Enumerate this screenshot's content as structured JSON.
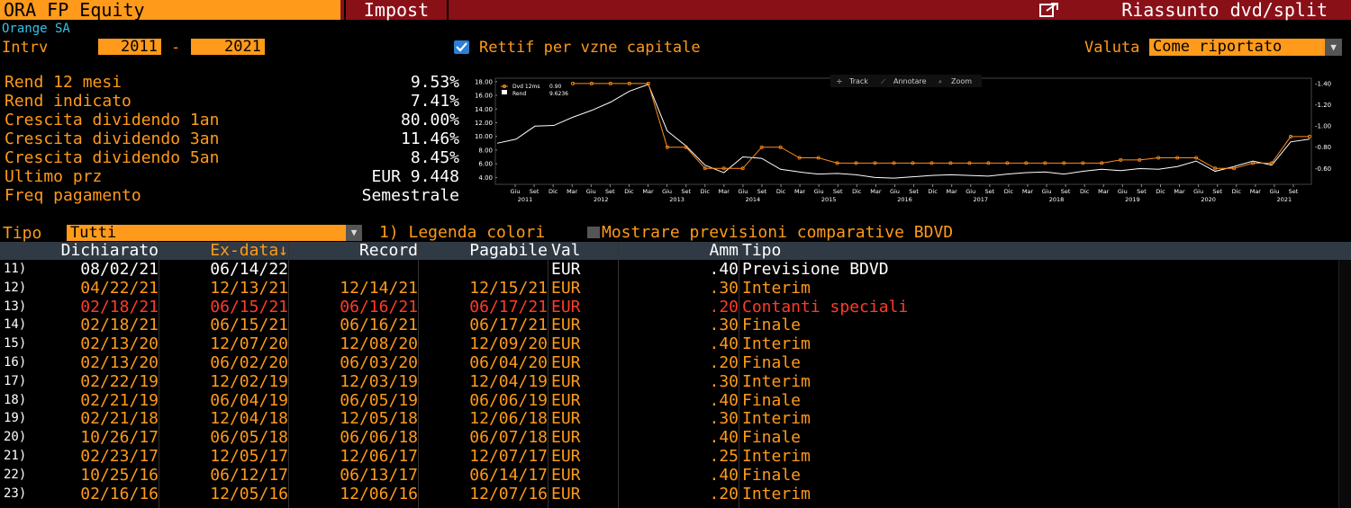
{
  "header": {
    "security": "ORA FP Equity",
    "impost": "Impost",
    "summary": "Riassunto dvd/split",
    "export_icon": "export-icon"
  },
  "company": "Orange SA",
  "interval": {
    "label": "Intrv",
    "from": "2011",
    "sep": "-",
    "to": "2021"
  },
  "rettif": {
    "label": "Rettif per vzne capitale",
    "checked": true
  },
  "valuta": {
    "label": "Valuta",
    "value": "Come riportato"
  },
  "stats": [
    {
      "label": "Rend 12 mesi",
      "value": "9.53%"
    },
    {
      "label": "Rend indicato",
      "value": "7.41%"
    },
    {
      "label": "Crescita dividendo 1an",
      "value": "80.00%"
    },
    {
      "label": "Crescita dividendo 3an",
      "value": "11.46%"
    },
    {
      "label": "Crescita dividendo 5an",
      "value": "8.45%"
    },
    {
      "label": "Ultimo prz",
      "value": "EUR 9.448"
    },
    {
      "label": "Freq pagamento",
      "value": "Semestrale"
    }
  ],
  "chart_data": {
    "type": "line",
    "toolbar": [
      "Track",
      "Annotare",
      "Zoom"
    ],
    "legend": [
      {
        "name": "Dvd 12ms",
        "value": "0.90"
      },
      {
        "name": "Rend",
        "value": "9.6236"
      }
    ],
    "legend_position": "top-left",
    "left_axis": {
      "ticks": [
        "18.00",
        "16.00",
        "14.00",
        "12.00",
        "10.00",
        "8.00",
        "6.00",
        "4.00"
      ],
      "range": [
        3,
        18.5
      ]
    },
    "right_axis": {
      "ticks": [
        "1.40",
        "1.20",
        "1.00",
        "0.80",
        "0.60"
      ],
      "range": [
        0.45,
        1.45
      ]
    },
    "month_labels": [
      "Giu",
      "Set",
      "Dic",
      "Mar",
      "Giu",
      "Set",
      "Dic",
      "Mar",
      "Giu",
      "Set",
      "Dic",
      "Mar",
      "Giu",
      "Set",
      "Dic",
      "Mar",
      "Giu",
      "Set",
      "Dic",
      "Mar",
      "Giu",
      "Set",
      "Dic",
      "Mar",
      "Giu",
      "Set",
      "Dic",
      "Mar",
      "Giu",
      "Set",
      "Dic",
      "Mar",
      "Giu",
      "Set",
      "Dic",
      "Mar",
      "Giu",
      "Set",
      "Dic",
      "Mar",
      "Giu",
      "Set"
    ],
    "year_labels": [
      "2011",
      "2012",
      "2013",
      "2014",
      "2015",
      "2016",
      "2017",
      "2018",
      "2019",
      "2020",
      "2021"
    ],
    "series": [
      {
        "name": "Rend",
        "axis": "left",
        "color": "#ffffff",
        "values": [
          9.0,
          9.6,
          11.5,
          11.6,
          12.8,
          13.8,
          15.0,
          16.6,
          17.6,
          10.8,
          8.6,
          5.8,
          4.7,
          7.0,
          6.8,
          5.2,
          4.8,
          4.5,
          4.6,
          4.4,
          4.0,
          3.9,
          4.1,
          4.3,
          4.4,
          4.3,
          4.2,
          4.5,
          4.7,
          4.8,
          4.5,
          4.9,
          5.2,
          5.0,
          5.3,
          5.2,
          5.6,
          6.4,
          4.9,
          5.6,
          6.4,
          5.8,
          9.2,
          9.6
        ]
      },
      {
        "name": "Dvd 12ms",
        "axis": "right",
        "color": "#ff8c1a",
        "values": [
          null,
          null,
          null,
          null,
          1.4,
          1.4,
          1.4,
          1.4,
          1.4,
          0.8,
          0.8,
          0.6,
          0.6,
          0.6,
          0.8,
          0.8,
          0.7,
          0.7,
          0.65,
          0.65,
          0.65,
          0.65,
          0.65,
          0.65,
          0.65,
          0.65,
          0.65,
          0.65,
          0.65,
          0.65,
          0.65,
          0.65,
          0.65,
          0.68,
          0.68,
          0.7,
          0.7,
          0.7,
          0.6,
          0.6,
          0.65,
          0.65,
          0.9,
          0.9
        ]
      }
    ]
  },
  "filter": {
    "tipo_label": "Tipo",
    "tipo_value": "Tutti",
    "legend_link": "1) Legenda colori",
    "bdvd_label": "Mostrare previsioni comparative BDVD"
  },
  "table": {
    "headers": {
      "dichiarato": "Dichiarato",
      "ex_data": "Ex-data↓",
      "record": "Record",
      "pagabile": "Pagabile",
      "val": "Val",
      "amm": "Amm",
      "tipo": "Tipo"
    },
    "rows": [
      {
        "num": "11)",
        "dichiarato": "08/02/21",
        "ex_data": "06/14/22",
        "record": "",
        "pagabile": "",
        "val": "EUR",
        "amm": ".40",
        "tipo": "Previsione BDVD",
        "color": "#ffffff"
      },
      {
        "num": "12)",
        "dichiarato": "04/22/21",
        "ex_data": "12/13/21",
        "record": "12/14/21",
        "pagabile": "12/15/21",
        "val": "EUR",
        "amm": ".30",
        "tipo": "Interim",
        "color": "#ff9a1a"
      },
      {
        "num": "13)",
        "dichiarato": "02/18/21",
        "ex_data": "06/15/21",
        "record": "06/16/21",
        "pagabile": "06/17/21",
        "val": "EUR",
        "amm": ".20",
        "tipo": "Contanti speciali",
        "color": "#ff3b2a"
      },
      {
        "num": "14)",
        "dichiarato": "02/18/21",
        "ex_data": "06/15/21",
        "record": "06/16/21",
        "pagabile": "06/17/21",
        "val": "EUR",
        "amm": ".30",
        "tipo": "Finale",
        "color": "#ff9a1a"
      },
      {
        "num": "15)",
        "dichiarato": "02/13/20",
        "ex_data": "12/07/20",
        "record": "12/08/20",
        "pagabile": "12/09/20",
        "val": "EUR",
        "amm": ".40",
        "tipo": "Interim",
        "color": "#ff9a1a"
      },
      {
        "num": "16)",
        "dichiarato": "02/13/20",
        "ex_data": "06/02/20",
        "record": "06/03/20",
        "pagabile": "06/04/20",
        "val": "EUR",
        "amm": ".20",
        "tipo": "Finale",
        "color": "#ff9a1a"
      },
      {
        "num": "17)",
        "dichiarato": "02/22/19",
        "ex_data": "12/02/19",
        "record": "12/03/19",
        "pagabile": "12/04/19",
        "val": "EUR",
        "amm": ".30",
        "tipo": "Interim",
        "color": "#ff9a1a"
      },
      {
        "num": "18)",
        "dichiarato": "02/21/19",
        "ex_data": "06/04/19",
        "record": "06/05/19",
        "pagabile": "06/06/19",
        "val": "EUR",
        "amm": ".40",
        "tipo": "Finale",
        "color": "#ff9a1a"
      },
      {
        "num": "19)",
        "dichiarato": "02/21/18",
        "ex_data": "12/04/18",
        "record": "12/05/18",
        "pagabile": "12/06/18",
        "val": "EUR",
        "amm": ".30",
        "tipo": "Interim",
        "color": "#ff9a1a"
      },
      {
        "num": "20)",
        "dichiarato": "10/26/17",
        "ex_data": "06/05/18",
        "record": "06/06/18",
        "pagabile": "06/07/18",
        "val": "EUR",
        "amm": ".40",
        "tipo": "Finale",
        "color": "#ff9a1a"
      },
      {
        "num": "21)",
        "dichiarato": "02/23/17",
        "ex_data": "12/05/17",
        "record": "12/06/17",
        "pagabile": "12/07/17",
        "val": "EUR",
        "amm": ".25",
        "tipo": "Interim",
        "color": "#ff9a1a"
      },
      {
        "num": "22)",
        "dichiarato": "10/25/16",
        "ex_data": "06/12/17",
        "record": "06/13/17",
        "pagabile": "06/14/17",
        "val": "EUR",
        "amm": ".40",
        "tipo": "Finale",
        "color": "#ff9a1a"
      },
      {
        "num": "23)",
        "dichiarato": "02/16/16",
        "ex_data": "12/05/16",
        "record": "12/06/16",
        "pagabile": "12/07/16",
        "val": "EUR",
        "amm": ".20",
        "tipo": "Interim",
        "color": "#ff9a1a"
      }
    ]
  }
}
